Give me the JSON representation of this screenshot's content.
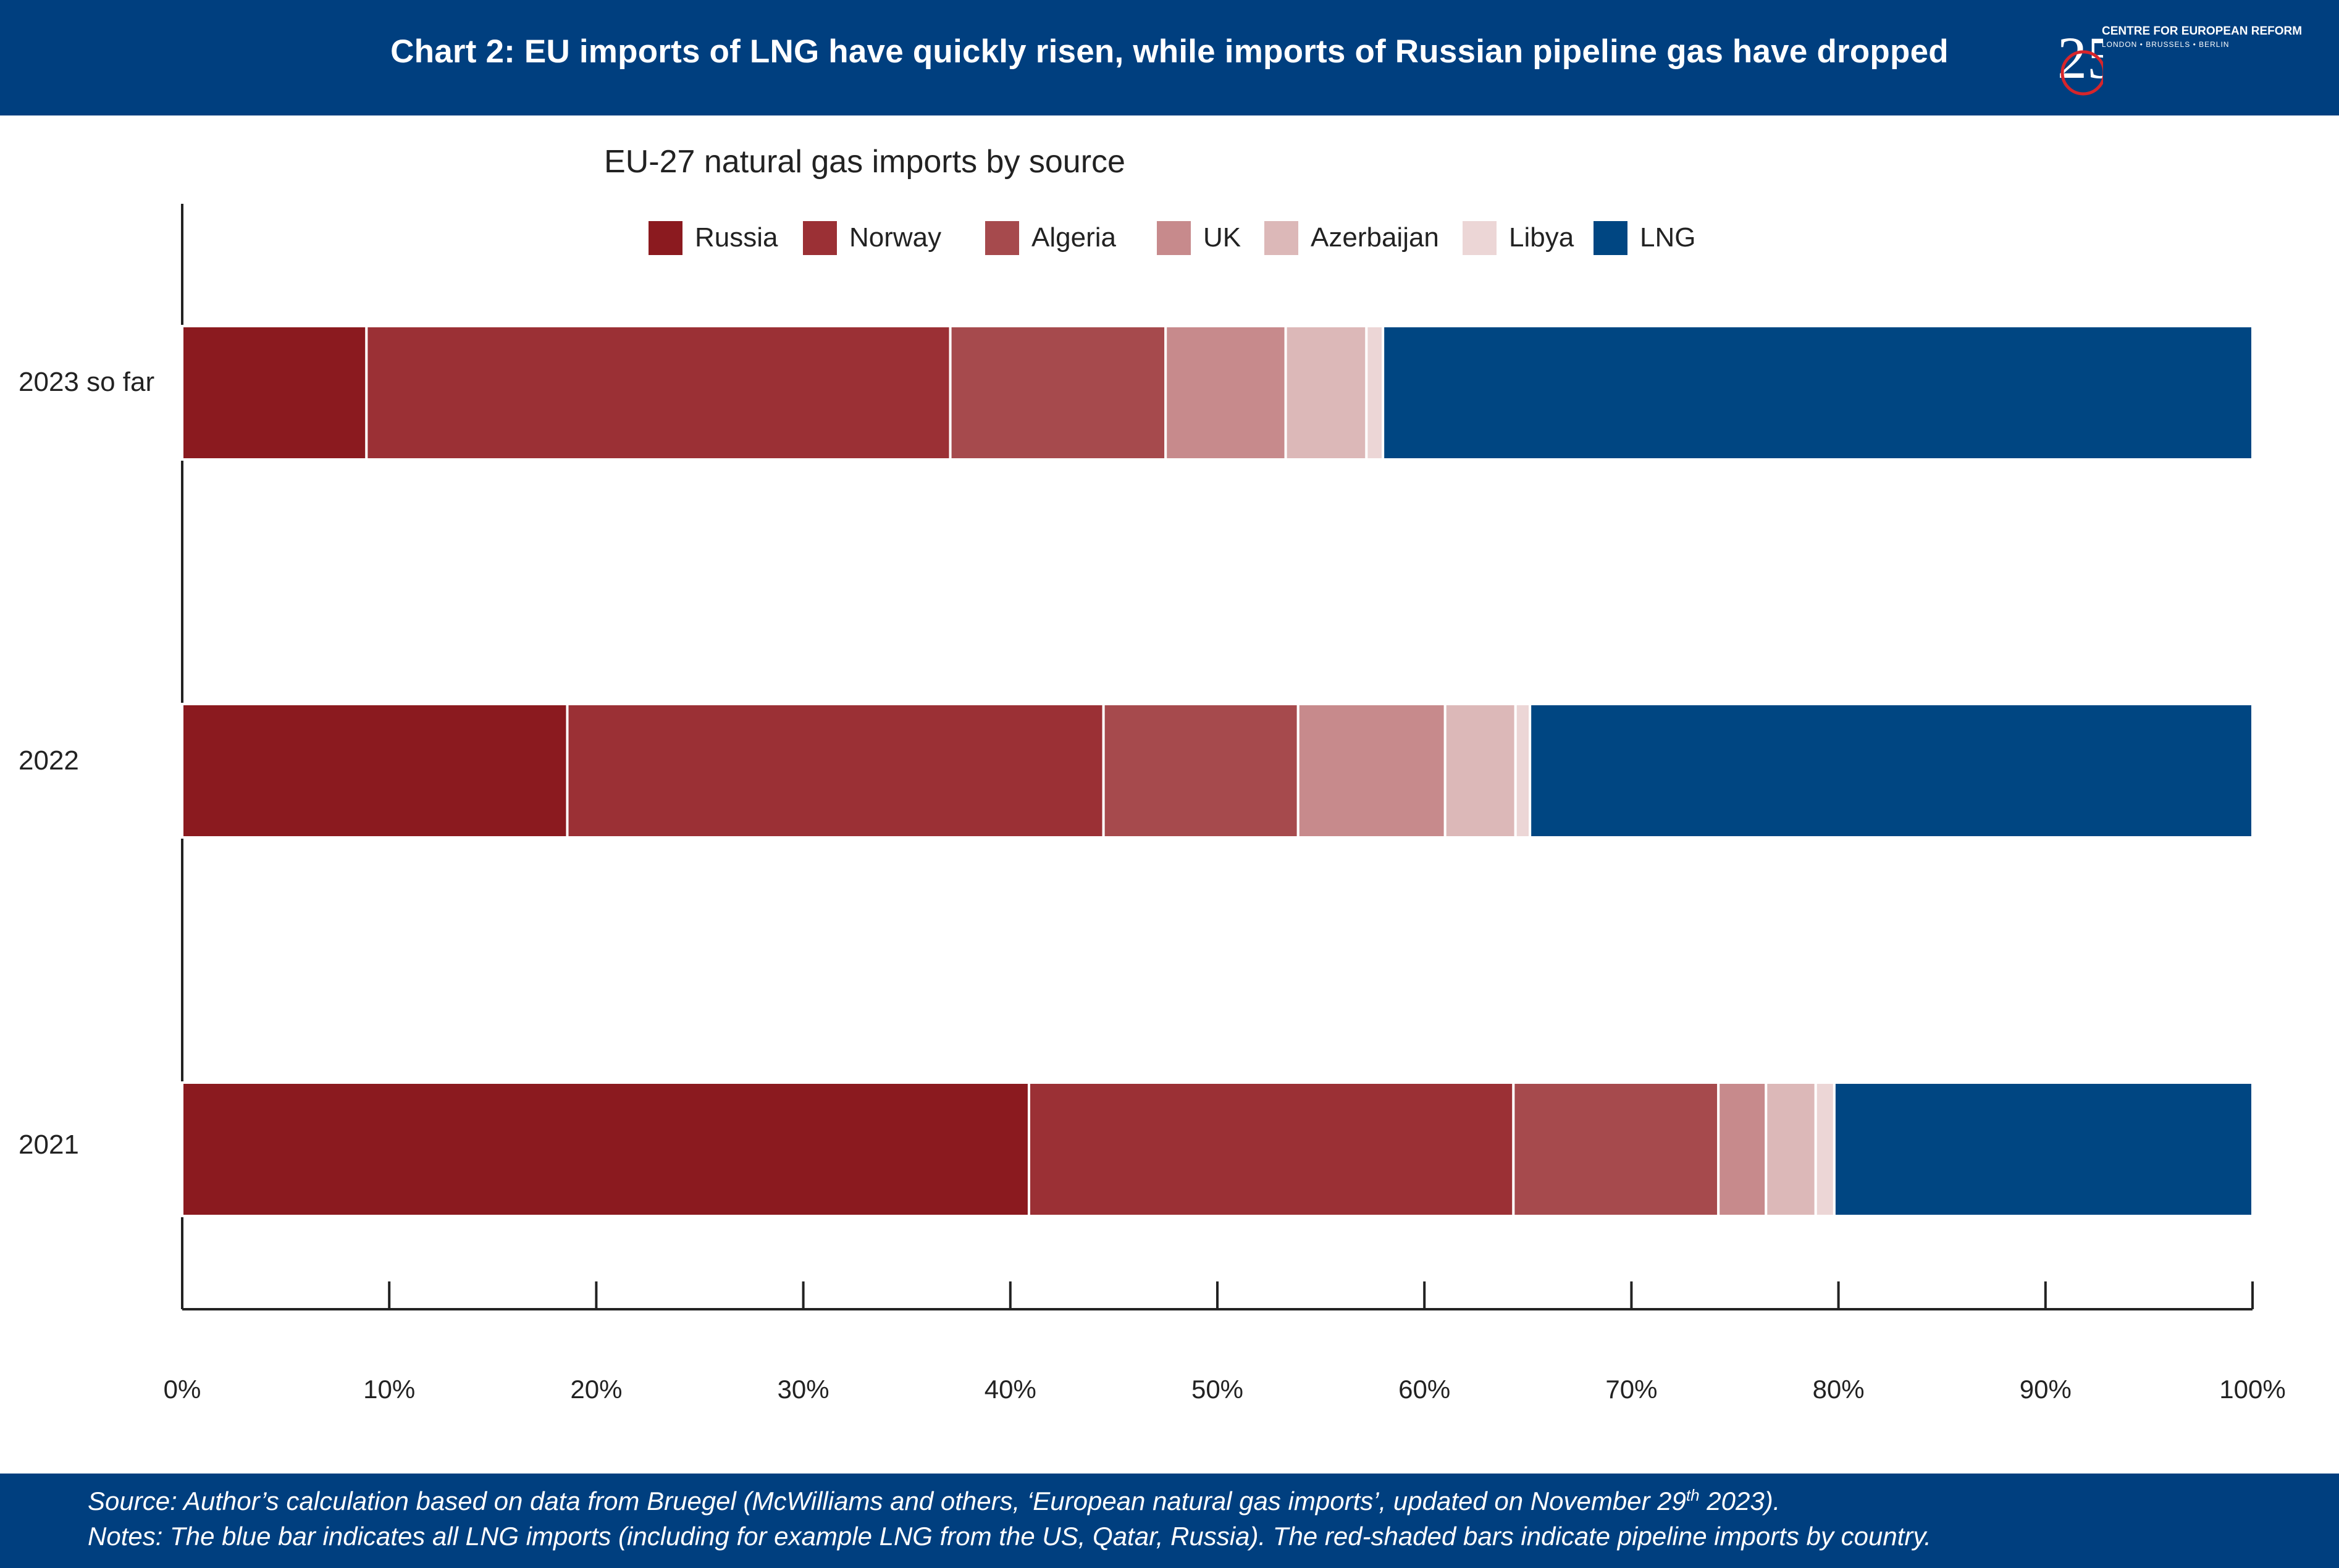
{
  "header": {
    "title": "Chart 2: EU imports of LNG have quickly risen, while imports of Russian pipeline gas have dropped",
    "logo_number": "25",
    "logo_org": "CENTRE FOR EUROPEAN REFORM",
    "logo_cities": "LONDON • BRUSSELS • BERLIN"
  },
  "colors": {
    "header_bg": "#003f7f",
    "russia": "#8b1a1f",
    "norway": "#9b3035",
    "algeria": "#a64a4d",
    "uk": "#c78a8c",
    "azerbaijan": "#dcb8b8",
    "libya": "#ecd6d6",
    "lng": "#004682"
  },
  "chart_data": {
    "type": "bar",
    "orientation": "horizontal",
    "stacked": true,
    "title": "EU-27 natural gas imports by source",
    "categories": [
      "2023 so far",
      "2022",
      "2021"
    ],
    "series": [
      {
        "name": "Russia",
        "values": [
          8.9,
          18.6,
          40.9
        ]
      },
      {
        "name": "Norway",
        "values": [
          28.2,
          25.9,
          23.4
        ]
      },
      {
        "name": "Algeria",
        "values": [
          10.4,
          9.4,
          9.9
        ]
      },
      {
        "name": "UK",
        "values": [
          5.8,
          7.1,
          2.3
        ]
      },
      {
        "name": "Azerbaijan",
        "values": [
          3.9,
          3.4,
          2.4
        ]
      },
      {
        "name": "Libya",
        "values": [
          0.8,
          0.7,
          0.9
        ]
      },
      {
        "name": "LNG",
        "values": [
          42.0,
          34.9,
          20.2
        ]
      }
    ],
    "xticks": [
      "0%",
      "10%",
      "20%",
      "30%",
      "40%",
      "50%",
      "60%",
      "70%",
      "80%",
      "90%",
      "100%"
    ],
    "xlim": [
      0,
      100
    ],
    "grid": false,
    "legend": "top"
  },
  "footer": {
    "source_prefix": "Source: Author’s calculation based on data from Bruegel (McWilliams and others, ‘European natural gas imports’, updated on November 29",
    "source_sup": "th",
    "source_suffix": " 2023).",
    "notes": "Notes: The blue bar indicates all LNG imports (including for example LNG from the US, Qatar, Russia). The red-shaded bars indicate pipeline imports by country."
  }
}
